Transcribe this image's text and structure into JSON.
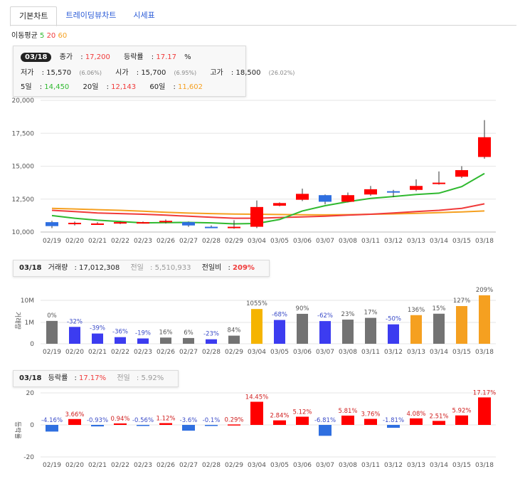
{
  "tabs": [
    "기본차트",
    "트레이딩뷰차트",
    "시세표"
  ],
  "moving_avg": {
    "label": "이동평균",
    "p5": "5",
    "p20": "20",
    "p60": "60"
  },
  "colors": {
    "up": "#ff0000",
    "down": "#2f6fe0",
    "vol_up": "#3c3cf0",
    "vol_grey": "#737373",
    "vol_gold": "#f5b400",
    "vol_orange": "#f5a020",
    "ma5": "#2fb92f",
    "ma20": "#f03a3a",
    "ma60": "#f5a020"
  },
  "info": {
    "date": "03/18",
    "close_label": "종가",
    "close": "17,200",
    "change_label": "등락률",
    "change": "17.17",
    "change_unit": "%",
    "low_label": "저가",
    "low": "15,570",
    "low_pct": "(6.06%)",
    "open_label": "시가",
    "open": "15,700",
    "open_pct": "(6.95%)",
    "high_label": "고가",
    "high": "18,500",
    "high_pct": "(26.02%)",
    "ma5_label": "5일",
    "ma5": "14,450",
    "ma20_label": "20일",
    "ma20": "12,143",
    "ma60_label": "60일",
    "ma60": "11,602"
  },
  "volume_info": {
    "date": "03/18",
    "label": "거래량",
    "value": "17,012,308",
    "prev_label": "전일",
    "prev": "5,510,933",
    "ratio_label": "전일비",
    "ratio": "209%"
  },
  "change_info": {
    "date": "03/18",
    "label": "등락률",
    "value": "17.17%",
    "prev_label": "전일",
    "prev": "5.92%"
  },
  "chart_data": [
    {
      "type": "candlestick",
      "ylim": [
        10000,
        20000
      ],
      "yticks": [
        "10,000",
        "12,500",
        "15,000",
        "17,500",
        "20,000"
      ],
      "categories": [
        "02/19",
        "02/20",
        "02/21",
        "02/22",
        "02/23",
        "02/26",
        "02/27",
        "02/28",
        "02/29",
        "03/04",
        "03/05",
        "03/06",
        "03/07",
        "03/08",
        "03/11",
        "03/12",
        "03/13",
        "03/14",
        "03/15",
        "03/18"
      ],
      "open": [
        10750,
        10600,
        10600,
        10700,
        10700,
        10750,
        10750,
        10400,
        10350,
        10400,
        12000,
        12450,
        12800,
        12300,
        12850,
        13100,
        13200,
        13700,
        14200,
        15700
      ],
      "high": [
        10850,
        10800,
        10750,
        10800,
        10800,
        10950,
        10800,
        10500,
        10900,
        12400,
        12250,
        13300,
        12850,
        13000,
        13500,
        13200,
        14000,
        14600,
        15000,
        18500
      ],
      "low": [
        10300,
        10500,
        10550,
        10600,
        10650,
        10650,
        10400,
        10300,
        10250,
        10300,
        11950,
        12350,
        12100,
        12250,
        12750,
        12650,
        13100,
        13600,
        14100,
        15570
      ],
      "close": [
        10450,
        10700,
        10650,
        10750,
        10750,
        10850,
        10500,
        10350,
        10400,
        11900,
        12200,
        12900,
        12300,
        12800,
        13250,
        13050,
        13500,
        13750,
        14700,
        17200
      ],
      "ma5": [
        11250,
        11050,
        10900,
        10800,
        10700,
        10720,
        10730,
        10700,
        10620,
        10650,
        10950,
        11600,
        12000,
        12300,
        12550,
        12700,
        12850,
        12950,
        13450,
        14450
      ],
      "ma20": [
        11650,
        11550,
        11450,
        11400,
        11350,
        11280,
        11200,
        11120,
        11050,
        11050,
        11100,
        11150,
        11200,
        11280,
        11350,
        11450,
        11550,
        11650,
        11800,
        12143
      ],
      "ma60": [
        11800,
        11750,
        11700,
        11650,
        11580,
        11500,
        11440,
        11400,
        11370,
        11350,
        11330,
        11310,
        11300,
        11320,
        11350,
        11380,
        11420,
        11470,
        11530,
        11602
      ]
    },
    {
      "type": "bar",
      "ylabel": "거래량",
      "yticks": [
        "0",
        "1M",
        "10M"
      ],
      "values_millions": [
        1.17,
        0.79,
        0.48,
        0.31,
        0.25,
        0.29,
        0.27,
        0.21,
        0.38,
        4.05,
        1.29,
        2.45,
        1.15,
        1.34,
        1.61,
        0.91,
        2.14,
        2.48,
        5.51,
        17.01
      ],
      "labels": [
        "0%",
        "-32%",
        "-39%",
        "-36%",
        "-19%",
        "16%",
        "6%",
        "-23%",
        "84%",
        "1055%",
        "-68%",
        "90%",
        "-62%",
        "23%",
        "17%",
        "-50%",
        "136%",
        "15%",
        "127%",
        "209%"
      ],
      "bar_colors": [
        "vol_grey",
        "vol_up",
        "vol_up",
        "vol_up",
        "vol_up",
        "vol_grey",
        "vol_grey",
        "vol_up",
        "vol_grey",
        "vol_gold",
        "vol_up",
        "vol_grey",
        "vol_up",
        "vol_grey",
        "vol_grey",
        "vol_up",
        "vol_orange",
        "vol_grey",
        "vol_orange",
        "vol_orange"
      ]
    },
    {
      "type": "bar",
      "ylabel": "등락률",
      "ylim": [
        -20,
        20
      ],
      "yticks": [
        "-20",
        "0",
        "20"
      ],
      "values": [
        -4.16,
        3.66,
        -0.93,
        0.94,
        -0.56,
        1.12,
        -3.6,
        -0.1,
        0.29,
        14.45,
        2.84,
        5.12,
        -6.81,
        5.81,
        3.76,
        -1.81,
        4.08,
        2.51,
        5.92,
        17.17
      ],
      "labels": [
        "-4.16%",
        "3.66%",
        "-0.93%",
        "0.94%",
        "-0.56%",
        "1.12%",
        "-3.6%",
        "-0.1%",
        "0.29%",
        "14.45%",
        "2.84%",
        "5.12%",
        "-6.81%",
        "5.81%",
        "3.76%",
        "-1.81%",
        "4.08%",
        "2.51%",
        "5.92%",
        "17.17%"
      ]
    }
  ]
}
